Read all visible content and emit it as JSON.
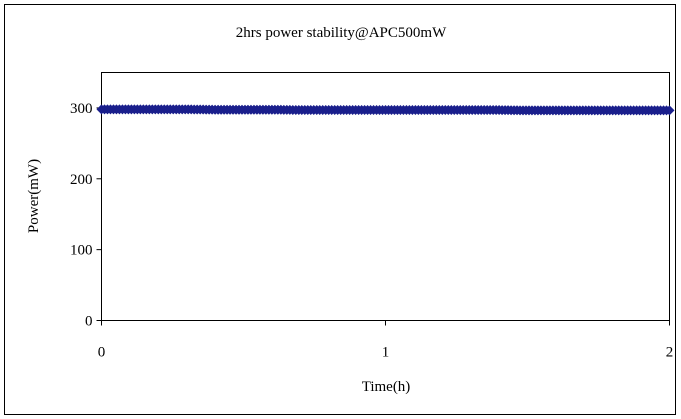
{
  "chart_data": {
    "type": "scatter",
    "title": "2hrs power stability@APC500mW",
    "xlabel": "Time(h)",
    "ylabel": "Power(mW)",
    "xlim": [
      0,
      2
    ],
    "ylim": [
      0,
      350
    ],
    "xticks": [
      0,
      1,
      2
    ],
    "yticks": [
      0,
      100,
      200,
      300
    ],
    "grid": false,
    "legend": "none",
    "series": [
      {
        "color": "#1a1f8c",
        "x": [
          0,
          0.1,
          0.2,
          0.3,
          0.4,
          0.5,
          0.6,
          0.7,
          0.8,
          0.9,
          1.0,
          1.1,
          1.2,
          1.3,
          1.4,
          1.5,
          1.6,
          1.7,
          1.8,
          1.9,
          2.0
        ],
        "y": [
          298,
          298,
          298,
          298,
          297.5,
          297.5,
          297.5,
          297,
          297,
          297,
          297,
          297,
          297,
          297,
          297,
          296.5,
          296.5,
          296.5,
          296.5,
          296.5,
          296.5
        ]
      }
    ]
  }
}
